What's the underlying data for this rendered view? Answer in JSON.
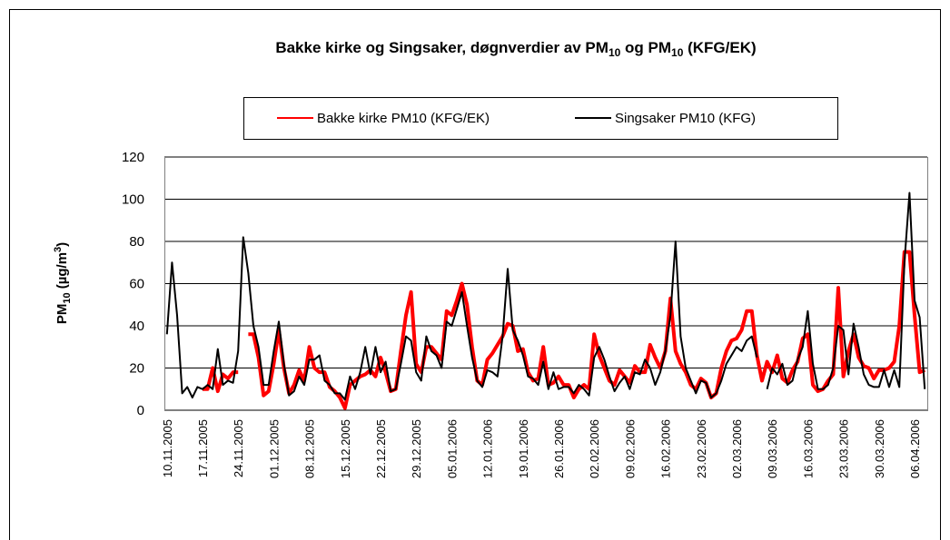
{
  "chart_data": {
    "type": "line",
    "title": [
      "Bakke kirke og Singsaker, døgnverdier av PM",
      "10",
      " og PM",
      "10",
      " (KFG/EK)"
    ],
    "ylabel": [
      "PM",
      "10",
      " (µg/m",
      "3",
      ")"
    ],
    "categories": [
      "10.11.2005",
      null,
      null,
      null,
      null,
      null,
      null,
      "17.11.2005",
      null,
      null,
      null,
      null,
      null,
      null,
      "24.11.2005",
      null,
      null,
      null,
      null,
      null,
      null,
      "01.12.2005",
      null,
      null,
      null,
      null,
      null,
      null,
      "08.12.2005",
      null,
      null,
      null,
      null,
      null,
      null,
      "15.12.2005",
      null,
      null,
      null,
      null,
      null,
      null,
      "22.12.2005",
      null,
      null,
      null,
      null,
      null,
      null,
      "29.12.2005",
      null,
      null,
      null,
      null,
      null,
      null,
      "05.01.2006",
      null,
      null,
      null,
      null,
      null,
      null,
      "12.01.2006",
      null,
      null,
      null,
      null,
      null,
      null,
      "19.01.2006",
      null,
      null,
      null,
      null,
      null,
      null,
      "26.01.2006",
      null,
      null,
      null,
      null,
      null,
      null,
      "02.02.2006",
      null,
      null,
      null,
      null,
      null,
      null,
      "09.02.2006",
      null,
      null,
      null,
      null,
      null,
      null,
      "16.02.2006",
      null,
      null,
      null,
      null,
      null,
      null,
      "23.02.2006",
      null,
      null,
      null,
      null,
      null,
      null,
      "02.03.2006",
      null,
      null,
      null,
      null,
      null,
      null,
      "09.03.2006",
      null,
      null,
      null,
      null,
      null,
      null,
      "16.03.2006",
      null,
      null,
      null,
      null,
      null,
      null,
      "23.03.2006",
      null,
      null,
      null,
      null,
      null,
      null,
      "30.03.2006",
      null,
      null,
      null,
      null,
      null,
      null,
      "06.04.2006",
      null,
      null
    ],
    "series": [
      {
        "name": "Bakke kirke PM10 (KFG/EK)",
        "color": "#ff0000",
        "width": 4,
        "values": [
          null,
          null,
          null,
          null,
          null,
          null,
          null,
          10,
          10,
          20,
          9,
          17,
          15,
          18,
          18,
          null,
          36,
          36,
          25,
          7,
          9,
          22,
          38,
          20,
          8,
          12,
          19,
          14,
          30,
          20,
          18,
          18,
          11,
          9,
          6,
          1,
          12,
          14,
          16,
          17,
          19,
          16,
          25,
          18,
          9,
          10,
          28,
          45,
          56,
          22,
          18,
          30,
          30,
          27,
          24,
          47,
          45,
          52,
          60,
          50,
          30,
          14,
          12,
          24,
          27,
          31,
          35,
          41,
          40,
          28,
          29,
          18,
          14,
          15,
          30,
          12,
          13,
          16,
          12,
          12,
          6,
          10,
          12,
          10,
          36,
          26,
          20,
          14,
          12,
          19,
          16,
          13,
          21,
          18,
          18,
          31,
          25,
          20,
          28,
          53,
          28,
          22,
          18,
          12,
          10,
          15,
          13,
          6,
          8,
          20,
          28,
          33,
          34,
          38,
          47,
          47,
          26,
          14,
          23,
          18,
          26,
          15,
          13,
          19,
          23,
          34,
          36,
          12,
          9,
          10,
          14,
          17,
          58,
          16,
          28,
          36,
          25,
          21,
          20,
          15,
          19,
          19,
          20,
          23,
          40,
          75,
          75,
          45,
          18,
          19
        ]
      },
      {
        "name": "Singsaker PM10 (KFG)",
        "color": "#000000",
        "width": 2,
        "values": [
          36,
          70,
          45,
          8,
          11,
          6,
          11,
          10,
          12,
          10,
          29,
          12,
          14,
          13,
          28,
          82,
          65,
          40,
          30,
          12,
          12,
          28,
          42,
          22,
          7,
          9,
          16,
          12,
          24,
          24,
          26,
          14,
          12,
          8,
          8,
          5,
          16,
          10,
          18,
          30,
          17,
          30,
          18,
          23,
          9,
          10,
          22,
          35,
          33,
          18,
          14,
          35,
          28,
          26,
          20,
          42,
          40,
          48,
          56,
          40,
          25,
          14,
          11,
          19,
          18,
          16,
          35,
          67,
          38,
          33,
          26,
          16,
          15,
          12,
          23,
          10,
          18,
          10,
          11,
          11,
          8,
          12,
          10,
          7,
          25,
          30,
          24,
          16,
          9,
          13,
          16,
          10,
          18,
          17,
          24,
          20,
          12,
          18,
          28,
          45,
          80,
          35,
          20,
          14,
          8,
          14,
          13,
          6,
          8,
          14,
          22,
          26,
          30,
          28,
          33,
          35,
          25,
          null,
          10,
          20,
          17,
          22,
          12,
          14,
          24,
          30,
          47,
          22,
          10,
          10,
          12,
          20,
          40,
          38,
          17,
          41,
          30,
          17,
          12,
          11,
          11,
          19,
          11,
          19,
          11,
          70,
          103,
          52,
          44,
          10
        ]
      }
    ],
    "ylim": [
      0,
      120
    ],
    "yticks": [
      0,
      20,
      40,
      60,
      80,
      100,
      120
    ],
    "grid": true,
    "legend": "top"
  }
}
